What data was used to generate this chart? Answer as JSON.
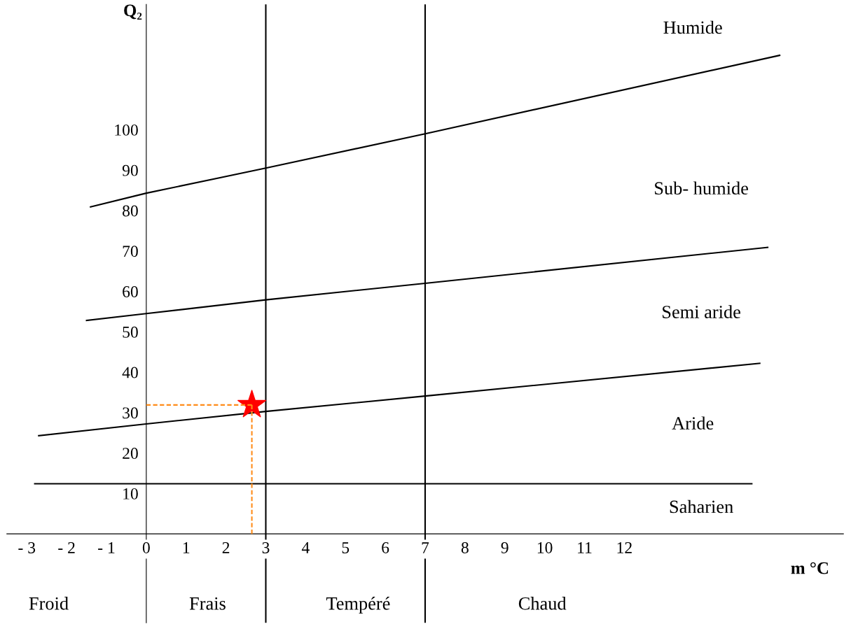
{
  "chart_data": {
    "type": "line",
    "xlabel": "m °C",
    "ylabel": "Q₂",
    "xlim": [
      -3.5,
      17.5
    ],
    "ylim": [
      -22,
      131
    ],
    "xticks": [
      {
        "value": -3,
        "label": "- 3"
      },
      {
        "value": -2,
        "label": "- 2"
      },
      {
        "value": -1,
        "label": "- 1"
      },
      0,
      1,
      2,
      3,
      4,
      5,
      6,
      7,
      8,
      9,
      10,
      11,
      12
    ],
    "yticks": [
      10,
      20,
      30,
      40,
      50,
      60,
      70,
      80,
      90,
      100
    ],
    "series": [
      {
        "color": "#000000",
        "x": [
          -1.4,
          0,
          3,
          7,
          15.9
        ],
        "values": [
          80.9,
          84.3,
          90.5,
          99,
          118.4
        ]
      },
      {
        "color": "#000000",
        "x": [
          -1.5,
          0,
          3,
          7,
          15.6
        ],
        "values": [
          52.8,
          54.5,
          57.9,
          62,
          70.9
        ]
      },
      {
        "color": "#000000",
        "x": [
          -2.7,
          0,
          3,
          7,
          15.4
        ],
        "values": [
          24.3,
          27.2,
          30.3,
          34.1,
          42.2
        ]
      },
      {
        "color": "#000000",
        "x": [
          -2.8,
          15.2
        ],
        "values": [
          12.4,
          12.4
        ]
      },
      {
        "color": "#ff8c1a",
        "line_style": "dashed",
        "x": [
          0,
          2.65
        ],
        "values": [
          31.9,
          31.9
        ]
      },
      {
        "color": "#ff8c1a",
        "line_style": "dashed",
        "x": [
          2.65,
          2.65
        ],
        "values": [
          0,
          31.9
        ]
      },
      {
        "type": "scatter",
        "color": "#ff0000",
        "marker": "star",
        "x": [
          2.65
        ],
        "values": [
          31.9
        ]
      }
    ],
    "ref_lines": [
      {
        "axis": "x",
        "value": 3,
        "color": "#000000"
      },
      {
        "axis": "x",
        "value": 7,
        "color": "#000000"
      }
    ],
    "annotations": [
      "Humide",
      "Sub- humide",
      "Semi aride",
      "Aride",
      "Saharien",
      "Froid",
      "Frais",
      "Tempéré",
      "Chaud"
    ]
  }
}
